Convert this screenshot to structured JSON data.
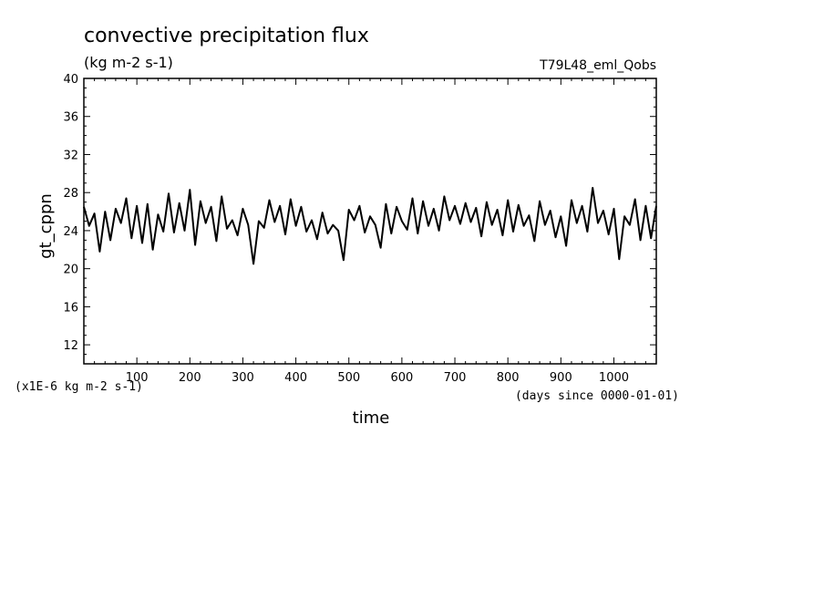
{
  "chart_data": {
    "type": "line",
    "title": "convective precipitation flux",
    "units": "(kg m-2 s-1)",
    "experiment": "T79L48_eml_Qobs",
    "ylabel": "gt_cppn",
    "xlabel": "time",
    "y_scale_note": "(x1E-6 kg m-2 s-1)",
    "x_units_note": "(days since 0000-01-01)",
    "xlim": [
      0,
      1080
    ],
    "ylim": [
      10,
      40
    ],
    "x_ticks": [
      100,
      200,
      300,
      400,
      500,
      600,
      700,
      800,
      900,
      1000
    ],
    "x_tick_labels": [
      "100",
      "200",
      "300",
      "400",
      "500",
      "600",
      "700",
      "800",
      "900",
      "1000"
    ],
    "y_ticks": [
      12,
      16,
      20,
      24,
      28,
      32,
      36,
      40
    ],
    "y_tick_labels": [
      "12",
      "16",
      "20",
      "24",
      "28",
      "32",
      "36",
      "40"
    ],
    "line_color": "#000000",
    "series": [
      {
        "x": [
          0,
          10,
          20,
          30,
          40,
          50,
          60,
          70,
          80,
          90,
          100,
          110,
          120,
          130,
          140,
          150,
          160,
          170,
          180,
          190,
          200,
          210,
          220,
          230,
          240,
          250,
          260,
          270,
          280,
          290,
          300,
          310,
          320,
          330,
          340,
          350,
          360,
          370,
          380,
          390,
          400,
          410,
          420,
          430,
          440,
          450,
          460,
          470,
          480,
          490,
          500,
          510,
          520,
          530,
          540,
          550,
          560,
          570,
          580,
          590,
          600,
          610,
          620,
          630,
          640,
          650,
          660,
          670,
          680,
          690,
          700,
          710,
          720,
          730,
          740,
          750,
          760,
          770,
          780,
          790,
          800,
          810,
          820,
          830,
          840,
          850,
          860,
          870,
          880,
          890,
          900,
          910,
          920,
          930,
          940,
          950,
          960,
          970,
          980,
          990,
          1000,
          1010,
          1020,
          1030,
          1040,
          1050,
          1060,
          1070,
          1080
        ],
        "values": [
          26.5,
          24.5,
          25.8,
          21.8,
          26.0,
          23.0,
          26.3,
          24.8,
          27.4,
          23.2,
          26.6,
          22.7,
          26.8,
          22.0,
          25.7,
          23.9,
          27.9,
          23.8,
          26.9,
          24.0,
          28.3,
          22.5,
          27.1,
          24.8,
          26.5,
          22.9,
          27.6,
          24.2,
          25.1,
          23.5,
          26.3,
          24.6,
          20.5,
          25.0,
          24.3,
          27.2,
          24.9,
          26.6,
          23.6,
          27.3,
          24.5,
          26.5,
          23.9,
          25.1,
          23.1,
          25.9,
          23.7,
          24.6,
          24.0,
          20.9,
          26.2,
          25.1,
          26.6,
          23.8,
          25.5,
          24.6,
          22.2,
          26.8,
          23.7,
          26.5,
          25.0,
          24.1,
          27.4,
          23.7,
          27.1,
          24.5,
          26.3,
          24.0,
          27.6,
          25.1,
          26.6,
          24.7,
          26.9,
          24.9,
          26.4,
          23.4,
          27.0,
          24.6,
          26.2,
          23.5,
          27.2,
          23.9,
          26.7,
          24.5,
          25.6,
          22.9,
          27.1,
          24.6,
          26.1,
          23.3,
          25.5,
          22.4,
          27.2,
          24.8,
          26.6,
          23.9,
          28.5,
          24.8,
          26.1,
          23.6,
          26.3,
          21.0,
          25.5,
          24.6,
          27.3,
          23.0,
          26.6,
          23.2,
          26.6
        ]
      }
    ]
  }
}
